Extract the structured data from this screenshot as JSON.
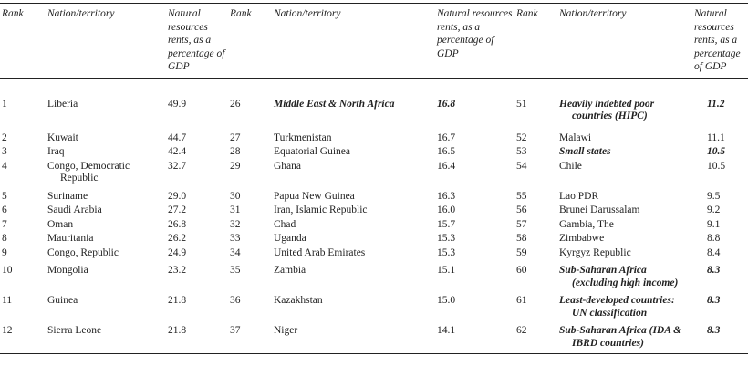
{
  "headers": [
    "Rank",
    "Nation/territory",
    "Natural resources rents, as a percentage of GDP",
    "Rank",
    "Nation/territory",
    "Natural resources rents, as a percentage of GDP",
    "Rank",
    "Nation/territory",
    "Natural resources rents, as a percentage of GDP"
  ],
  "rows": [
    [
      {
        "r": "1",
        "n": "Liberia",
        "v": "49.9"
      },
      {
        "r": "26",
        "n": "Middle East & North Africa",
        "v": "16.8",
        "agg": true
      },
      {
        "r": "51",
        "n": "Heavily indebted poor countries (HIPC)",
        "v": "11.2",
        "agg": true
      }
    ],
    [
      {
        "r": "2",
        "n": "Kuwait",
        "v": "44.7"
      },
      {
        "r": "27",
        "n": "Turkmenistan",
        "v": "16.7"
      },
      {
        "r": "52",
        "n": "Malawi",
        "v": "11.1"
      }
    ],
    [
      {
        "r": "3",
        "n": "Iraq",
        "v": "42.4"
      },
      {
        "r": "28",
        "n": "Equatorial Guinea",
        "v": "16.5"
      },
      {
        "r": "53",
        "n": "Small states",
        "v": "10.5",
        "agg": true
      }
    ],
    [
      {
        "r": "4",
        "n": "Congo, Democratic Republic",
        "v": "32.7"
      },
      {
        "r": "29",
        "n": "Ghana",
        "v": "16.4"
      },
      {
        "r": "54",
        "n": "Chile",
        "v": "10.5"
      }
    ],
    [
      {
        "r": "5",
        "n": "Suriname",
        "v": "29.0"
      },
      {
        "r": "30",
        "n": "Papua New Guinea",
        "v": "16.3"
      },
      {
        "r": "55",
        "n": "Lao PDR",
        "v": "9.5"
      }
    ],
    [
      {
        "r": "6",
        "n": "Saudi Arabia",
        "v": "27.2"
      },
      {
        "r": "31",
        "n": "Iran, Islamic Republic",
        "v": "16.0"
      },
      {
        "r": "56",
        "n": "Brunei Darussalam",
        "v": "9.2"
      }
    ],
    [
      {
        "r": "7",
        "n": "Oman",
        "v": "26.8"
      },
      {
        "r": "32",
        "n": "Chad",
        "v": "15.7"
      },
      {
        "r": "57",
        "n": "Gambia, The",
        "v": "9.1"
      }
    ],
    [
      {
        "r": "8",
        "n": "Mauritania",
        "v": "26.2"
      },
      {
        "r": "33",
        "n": "Uganda",
        "v": "15.3"
      },
      {
        "r": "58",
        "n": "Zimbabwe",
        "v": "8.8"
      }
    ],
    [
      {
        "r": "9",
        "n": "Congo, Republic",
        "v": "24.9"
      },
      {
        "r": "34",
        "n": "United Arab Emirates",
        "v": "15.3"
      },
      {
        "r": "59",
        "n": "Kyrgyz Republic",
        "v": "8.4"
      }
    ],
    [
      {
        "r": "10",
        "n": "Mongolia",
        "v": "23.2"
      },
      {
        "r": "35",
        "n": "Zambia",
        "v": "15.1"
      },
      {
        "r": "60",
        "n": "Sub-Saharan Africa (excluding high income)",
        "v": "8.3",
        "agg": true
      }
    ],
    [
      {
        "r": "11",
        "n": "Guinea",
        "v": "21.8"
      },
      {
        "r": "36",
        "n": "Kazakhstan",
        "v": "15.0"
      },
      {
        "r": "61",
        "n": "Least-developed countries: UN classification",
        "v": "8.3",
        "agg": true
      }
    ],
    [
      {
        "r": "12",
        "n": "Sierra Leone",
        "v": "21.8"
      },
      {
        "r": "37",
        "n": "Niger",
        "v": "14.1"
      },
      {
        "r": "62",
        "n": "Sub-Saharan Africa (IDA & IBRD countries)",
        "v": "8.3",
        "agg": true
      }
    ]
  ]
}
